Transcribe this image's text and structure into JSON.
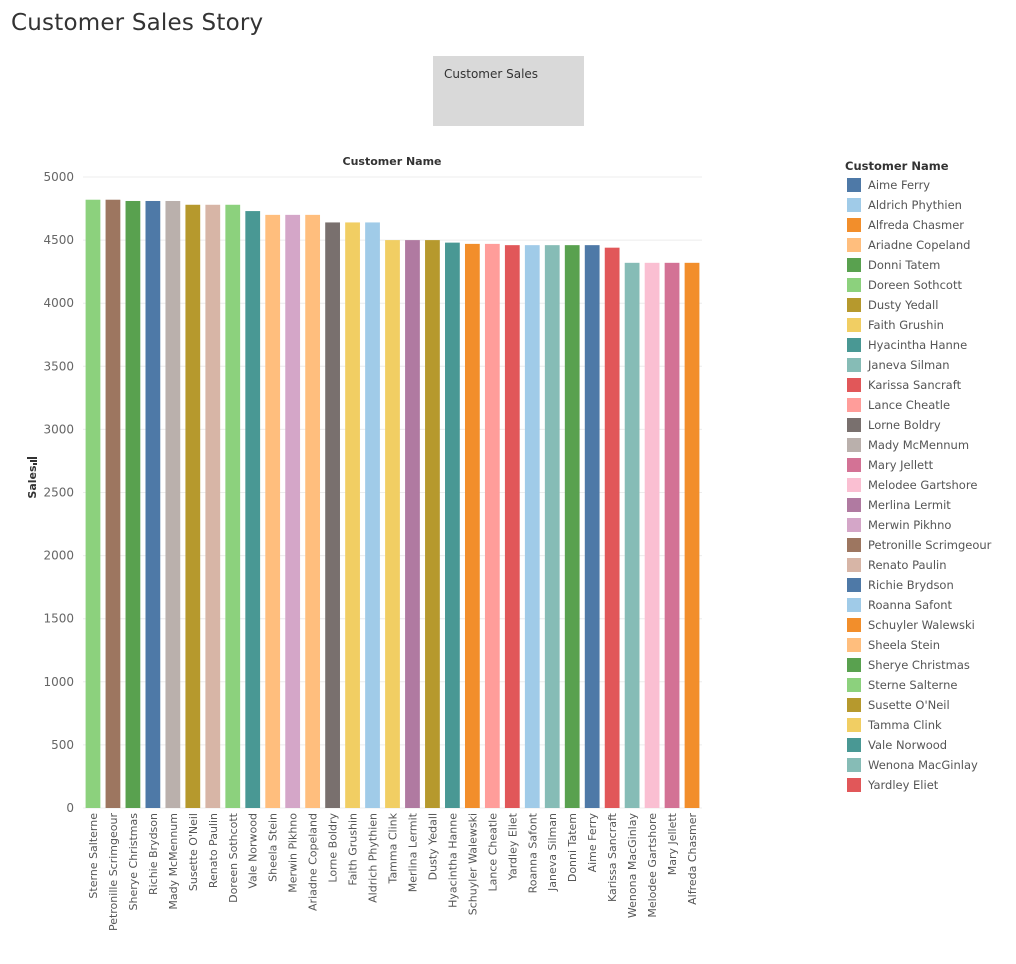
{
  "story": {
    "title": "Customer Sales Story",
    "nav_point_label": "Customer Sales"
  },
  "legend": {
    "title": "Customer Name",
    "items": [
      {
        "name": "Aime Ferry",
        "color": "#4e79a7"
      },
      {
        "name": "Aldrich Phythien",
        "color": "#a0cbe8"
      },
      {
        "name": "Alfreda Chasmer",
        "color": "#f28e2b"
      },
      {
        "name": "Ariadne Copeland",
        "color": "#ffbe7d"
      },
      {
        "name": "Donni Tatem",
        "color": "#59a14f"
      },
      {
        "name": "Doreen Sothcott",
        "color": "#8cd17d"
      },
      {
        "name": "Dusty Yedall",
        "color": "#b6992d"
      },
      {
        "name": "Faith Grushin",
        "color": "#f1ce63"
      },
      {
        "name": "Hyacintha Hanne",
        "color": "#499894"
      },
      {
        "name": "Janeva Silman",
        "color": "#86bcb6"
      },
      {
        "name": "Karissa Sancraft",
        "color": "#e15759"
      },
      {
        "name": "Lance Cheatle",
        "color": "#ff9d9a"
      },
      {
        "name": "Lorne Boldry",
        "color": "#79706e"
      },
      {
        "name": "Mady McMennum",
        "color": "#bab0ac"
      },
      {
        "name": "Mary Jellett",
        "color": "#d37295"
      },
      {
        "name": "Melodee Gartshore",
        "color": "#fabfd2"
      },
      {
        "name": "Merlina Lermit",
        "color": "#b07aa1"
      },
      {
        "name": "Merwin Pikhno",
        "color": "#d4a6c8"
      },
      {
        "name": "Petronille Scrimgeour",
        "color": "#9d7660"
      },
      {
        "name": "Renato Paulin",
        "color": "#d7b5a6"
      },
      {
        "name": "Richie Brydson",
        "color": "#4e79a7"
      },
      {
        "name": "Roanna Safont",
        "color": "#a0cbe8"
      },
      {
        "name": "Schuyler Walewski",
        "color": "#f28e2b"
      },
      {
        "name": "Sheela Stein",
        "color": "#ffbe7d"
      },
      {
        "name": "Sherye Christmas",
        "color": "#59a14f"
      },
      {
        "name": "Sterne Salterne",
        "color": "#8cd17d"
      },
      {
        "name": "Susette O'Neil",
        "color": "#b6992d"
      },
      {
        "name": "Tamma Clink",
        "color": "#f1ce63"
      },
      {
        "name": "Vale Norwood",
        "color": "#499894"
      },
      {
        "name": "Wenona MacGinlay",
        "color": "#86bcb6"
      },
      {
        "name": "Yardley Eliet",
        "color": "#e15759"
      }
    ]
  },
  "chart_data": {
    "type": "bar",
    "title": "Customer Name",
    "xlabel": "",
    "ylabel": "Sales",
    "ylim": [
      0,
      5000
    ],
    "yticks": [
      0,
      500,
      1000,
      1500,
      2000,
      2500,
      3000,
      3500,
      4000,
      4500,
      5000
    ],
    "grid": true,
    "legend_position": "right",
    "sort_icon": "sort-descending-icon",
    "categories": [
      "Sterne Salterne",
      "Petronille Scrimgeour",
      "Sherye Christmas",
      "Richie Brydson",
      "Mady McMennum",
      "Susette O'Neil",
      "Renato Paulin",
      "Doreen Sothcott",
      "Vale Norwood",
      "Sheela Stein",
      "Merwin Pikhno",
      "Ariadne Copeland",
      "Lorne Boldry",
      "Faith Grushin",
      "Aldrich Phythien",
      "Tamma Clink",
      "Merlina Lermit",
      "Dusty Yedall",
      "Hyacintha Hanne",
      "Schuyler Walewski",
      "Lance Cheatle",
      "Yardley Eliet",
      "Roanna Safont",
      "Janeva Silman",
      "Donni Tatem",
      "Aime Ferry",
      "Karissa Sancraft",
      "Wenona MacGinlay",
      "Melodee Gartshore",
      "Mary Jellett",
      "Alfreda Chasmer"
    ],
    "values": [
      4820,
      4820,
      4810,
      4810,
      4810,
      4780,
      4780,
      4780,
      4730,
      4700,
      4700,
      4700,
      4640,
      4640,
      4640,
      4500,
      4500,
      4500,
      4480,
      4470,
      4470,
      4460,
      4460,
      4460,
      4460,
      4460,
      4440,
      4320,
      4320,
      4320,
      4320
    ]
  }
}
